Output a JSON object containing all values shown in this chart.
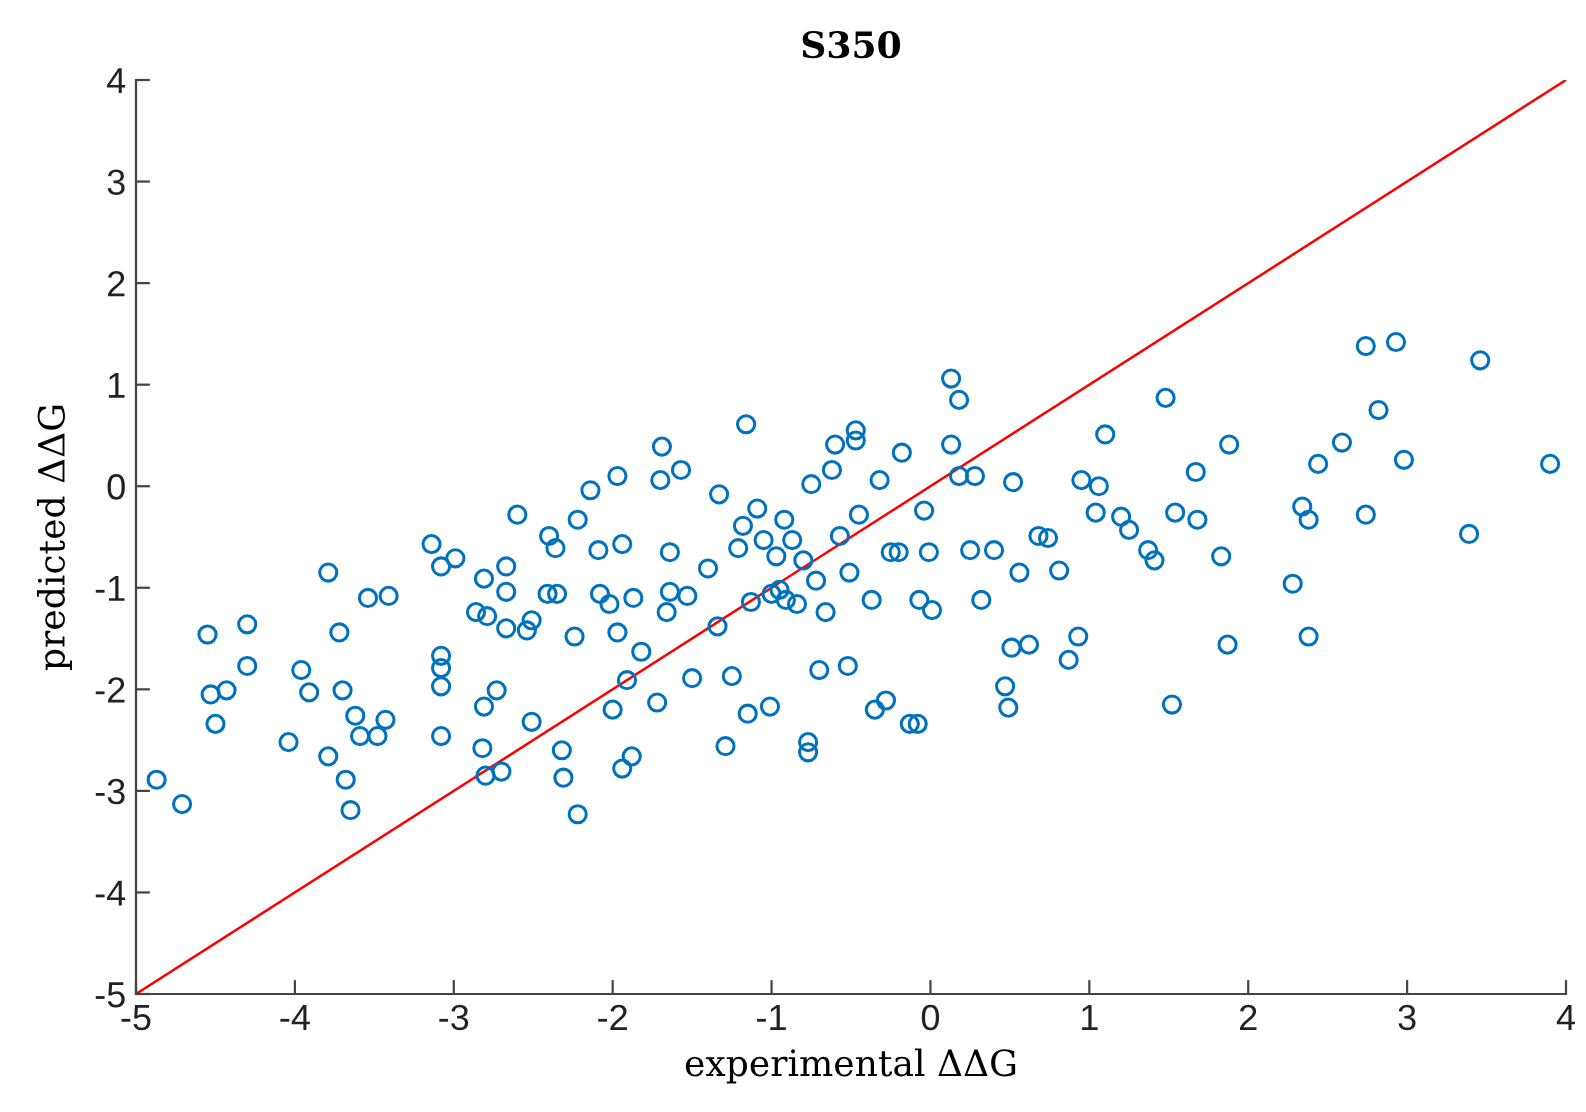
{
  "chart_data": {
    "type": "scatter",
    "title": "S350",
    "xlabel": "experimental ΔΔG",
    "ylabel": "predicted ΔΔG",
    "xlim": [
      -5,
      4
    ],
    "ylim": [
      -5,
      4
    ],
    "xticks": [
      -5,
      -4,
      -3,
      -2,
      -1,
      0,
      1,
      2,
      3,
      4
    ],
    "yticks": [
      -5,
      -4,
      -3,
      -2,
      -1,
      0,
      1,
      2,
      3,
      4
    ],
    "grid": false,
    "marker": "circle",
    "series": [
      {
        "color": "#0072bd",
        "x": [
          -4.87,
          -4.71,
          -4.55,
          -4.53,
          -4.5,
          -4.43,
          -4.3,
          -4.3,
          -4.04,
          -3.96,
          -3.91,
          -3.79,
          -3.79,
          -3.72,
          -3.7,
          -3.68,
          -3.65,
          -3.62,
          -3.59,
          -3.54,
          -3.48,
          -3.43,
          -3.41,
          -3.14,
          -3.08,
          -3.08,
          -3.08,
          -3.08,
          -3.08,
          -2.99,
          -2.86,
          -2.81,
          -2.82,
          -2.81,
          -2.8,
          -2.79,
          -2.73,
          -2.7,
          -2.67,
          -2.67,
          -2.6,
          -2.67,
          -2.54,
          -2.51,
          -2.51,
          -2.41,
          -2.4,
          -2.36,
          -2.35,
          -2.32,
          -2.31,
          -2.24,
          -2.22,
          -2.22,
          -2.14,
          -2.09,
          -2.08,
          -2.02,
          -2.0,
          -1.97,
          -1.97,
          -1.94,
          -1.94,
          -1.91,
          -1.87,
          -1.88,
          -1.82,
          -1.7,
          -1.69,
          -1.72,
          -1.66,
          -1.64,
          -1.64,
          -1.57,
          -1.53,
          -1.5,
          -1.4,
          -1.34,
          -1.33,
          -1.29,
          -1.25,
          -1.21,
          -1.18,
          -1.16,
          -1.15,
          -1.13,
          -1.09,
          -1.05,
          -1.01,
          -1.0,
          -0.95,
          -0.97,
          -0.92,
          -0.91,
          -0.87,
          -0.84,
          -0.8,
          -0.77,
          -0.77,
          -0.75,
          -0.72,
          -0.7,
          -0.66,
          -0.62,
          -0.6,
          -0.57,
          -0.52,
          -0.47,
          -0.47,
          -0.51,
          -0.45,
          -0.37,
          -0.35,
          -0.32,
          -0.28,
          -0.25,
          -0.2,
          -0.18,
          -0.13,
          -0.08,
          -0.04,
          -0.07,
          -0.01,
          0.01,
          0.13,
          0.18,
          0.13,
          0.28,
          0.25,
          0.18,
          0.32,
          0.4,
          0.52,
          0.47,
          0.49,
          0.51,
          0.56,
          0.62,
          0.68,
          0.74,
          0.81,
          0.87,
          0.93,
          1.04,
          1.06,
          0.95,
          1.1,
          1.2,
          1.25,
          1.37,
          1.41,
          1.48,
          1.52,
          1.54,
          1.67,
          1.68,
          1.83,
          1.87,
          1.88,
          2.28,
          2.34,
          2.38,
          2.38,
          2.44,
          2.59,
          2.74,
          2.74,
          2.82,
          2.93,
          2.98,
          3.39,
          3.46,
          3.9
        ],
        "values": [
          -2.89,
          -3.13,
          -1.46,
          -2.05,
          -2.34,
          -2.01,
          -1.36,
          -1.77,
          -2.52,
          -1.81,
          -2.03,
          -0.85,
          -2.66,
          -1.44,
          -2.01,
          -2.89,
          -3.19,
          -2.26,
          -2.46,
          -1.1,
          -2.46,
          -2.3,
          -1.08,
          -0.57,
          -0.79,
          -1.67,
          -1.79,
          -1.97,
          -2.46,
          -0.71,
          -1.24,
          -0.91,
          -2.58,
          -2.17,
          -2.85,
          -1.28,
          -2.01,
          -2.81,
          -0.79,
          -1.4,
          -0.28,
          -1.04,
          -1.42,
          -1.32,
          -2.32,
          -1.06,
          -0.49,
          -0.61,
          -1.06,
          -2.6,
          -2.87,
          -1.48,
          -3.23,
          -0.33,
          -0.04,
          -0.63,
          -1.06,
          -1.16,
          -2.2,
          -1.44,
          0.1,
          -0.57,
          -2.78,
          -1.91,
          -1.1,
          -2.66,
          -1.63,
          0.06,
          0.39,
          -2.13,
          -1.24,
          -0.65,
          -1.04,
          0.16,
          -1.08,
          -1.89,
          -0.81,
          -1.38,
          -0.08,
          -2.56,
          -1.87,
          -0.61,
          -0.39,
          0.61,
          -2.24,
          -1.14,
          -0.22,
          -0.53,
          -2.17,
          -1.06,
          -1.02,
          -0.69,
          -0.33,
          -1.12,
          -0.53,
          -1.16,
          -0.73,
          -2.52,
          -2.62,
          0.02,
          -0.93,
          -1.81,
          -1.24,
          0.16,
          0.41,
          -0.49,
          -1.77,
          0.55,
          0.45,
          -0.85,
          -0.28,
          -1.12,
          -2.2,
          0.06,
          -2.11,
          -0.65,
          -0.65,
          0.33,
          -2.34,
          -2.34,
          -0.24,
          -1.12,
          -0.65,
          -1.22,
          1.06,
          0.85,
          0.41,
          0.1,
          -0.63,
          0.1,
          -1.12,
          -0.63,
          0.04,
          -1.97,
          -2.18,
          -1.59,
          -0.85,
          -1.56,
          -0.49,
          -0.51,
          -0.83,
          -1.71,
          -1.48,
          -0.26,
          0.0,
          0.06,
          0.51,
          -0.3,
          -0.43,
          -0.63,
          -0.73,
          0.87,
          -2.15,
          -0.26,
          0.14,
          -0.33,
          -0.69,
          -1.56,
          0.41,
          -0.96,
          -0.2,
          -0.33,
          -1.48,
          0.22,
          0.43,
          1.38,
          -0.28,
          0.75,
          1.42,
          0.26,
          -0.47,
          1.24,
          0.22
        ]
      },
      {
        "type": "line",
        "color": "#ff0000",
        "x": [
          -5,
          4
        ],
        "values": [
          -5,
          4
        ],
        "marker": "none"
      }
    ]
  }
}
